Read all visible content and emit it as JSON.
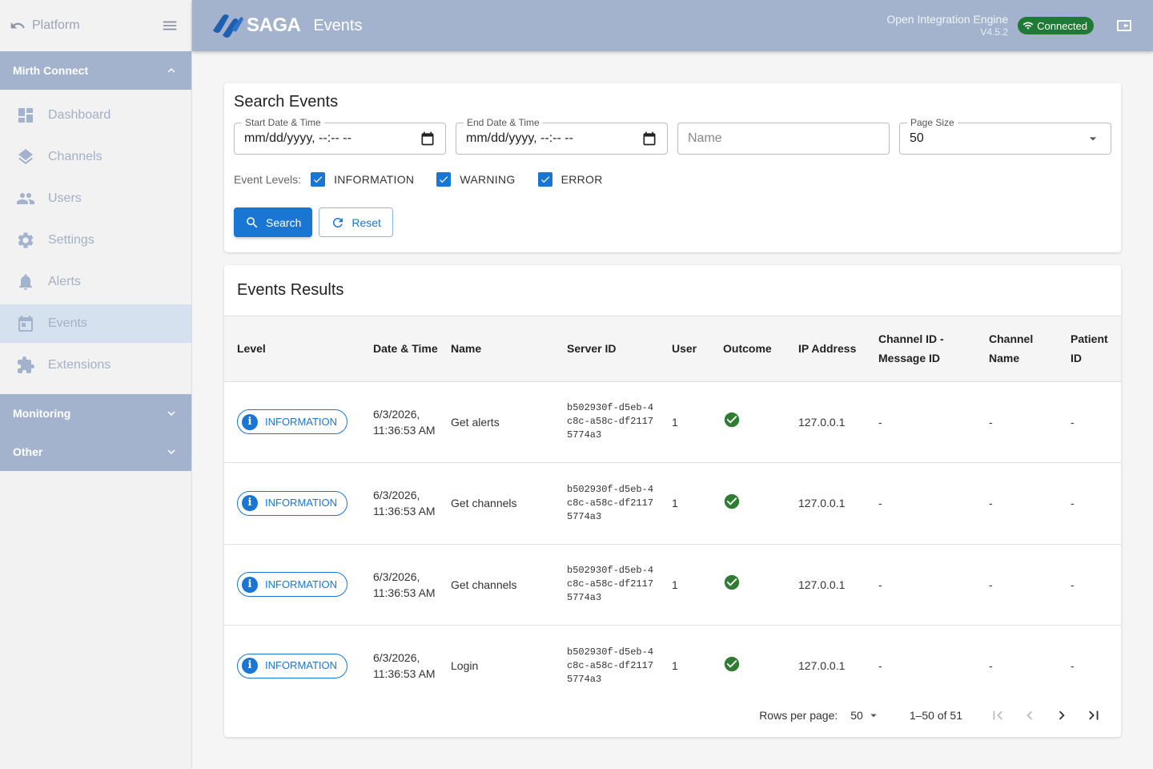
{
  "sidebar": {
    "platform_label": "Platform",
    "mirth_section": "Mirth Connect",
    "items": [
      {
        "label": "Dashboard",
        "icon": "dashboard-icon"
      },
      {
        "label": "Channels",
        "icon": "layers-icon"
      },
      {
        "label": "Users",
        "icon": "users-icon"
      },
      {
        "label": "Settings",
        "icon": "gear-icon"
      },
      {
        "label": "Alerts",
        "icon": "bell-icon"
      },
      {
        "label": "Events",
        "icon": "calendar-icon",
        "active": true
      },
      {
        "label": "Extensions",
        "icon": "puzzle-icon"
      }
    ],
    "monitoring_section": "Monitoring",
    "other_section": "Other"
  },
  "header": {
    "logo_text": "SAGA",
    "page_title": "Events",
    "engine_name": "Open Integration Engine",
    "version": "V4.5.2",
    "status": "Connected",
    "status_color": "#1f7a35",
    "bar_color": "#a3b3cd"
  },
  "search": {
    "title": "Search Events",
    "start_label": "Start Date & Time",
    "start_value": "mm/dd/yyyy, --:-- --",
    "end_label": "End Date & Time",
    "end_value": "mm/dd/yyyy, --:-- --",
    "name_placeholder": "Name",
    "page_size_label": "Page Size",
    "page_size_value": "50",
    "levels_label": "Event Levels:",
    "levels": [
      "INFORMATION",
      "WARNING",
      "ERROR"
    ],
    "search_button": "Search",
    "reset_button": "Reset",
    "accent": "#1976d2"
  },
  "results": {
    "title": "Events Results",
    "headers": [
      "Level",
      "Date & Time",
      "Name",
      "Server ID",
      "User",
      "Outcome",
      "IP Address",
      "Channel ID - Message ID",
      "Channel Name",
      "Patient ID"
    ],
    "rows": [
      {
        "level": "INFORMATION",
        "date": "6/3/2026, 11:36:53 AM",
        "name": "Get alerts",
        "server_id": "b502930f-d5eb-4c8c-a58c-df21175774a3",
        "user": "1",
        "outcome": "success",
        "ip": "127.0.0.1",
        "channel_msg": "-",
        "channel_name": "-",
        "patient_id": "-"
      },
      {
        "level": "INFORMATION",
        "date": "6/3/2026, 11:36:53 AM",
        "name": "Get channels",
        "server_id": "b502930f-d5eb-4c8c-a58c-df21175774a3",
        "user": "1",
        "outcome": "success",
        "ip": "127.0.0.1",
        "channel_msg": "-",
        "channel_name": "-",
        "patient_id": "-"
      },
      {
        "level": "INFORMATION",
        "date": "6/3/2026, 11:36:53 AM",
        "name": "Get channels",
        "server_id": "b502930f-d5eb-4c8c-a58c-df21175774a3",
        "user": "1",
        "outcome": "success",
        "ip": "127.0.0.1",
        "channel_msg": "-",
        "channel_name": "-",
        "patient_id": "-"
      },
      {
        "level": "INFORMATION",
        "date": "6/3/2026, 11:36:53 AM",
        "name": "Login",
        "server_id": "b502930f-d5eb-4c8c-a58c-df21175774a3",
        "user": "1",
        "outcome": "success",
        "ip": "127.0.0.1",
        "channel_msg": "-",
        "channel_name": "-",
        "patient_id": "-"
      }
    ],
    "pagination": {
      "rows_per_page_label": "Rows per page:",
      "rows_per_page": "50",
      "range": "1–50 of 51"
    },
    "success_color": "#2e7d32"
  }
}
